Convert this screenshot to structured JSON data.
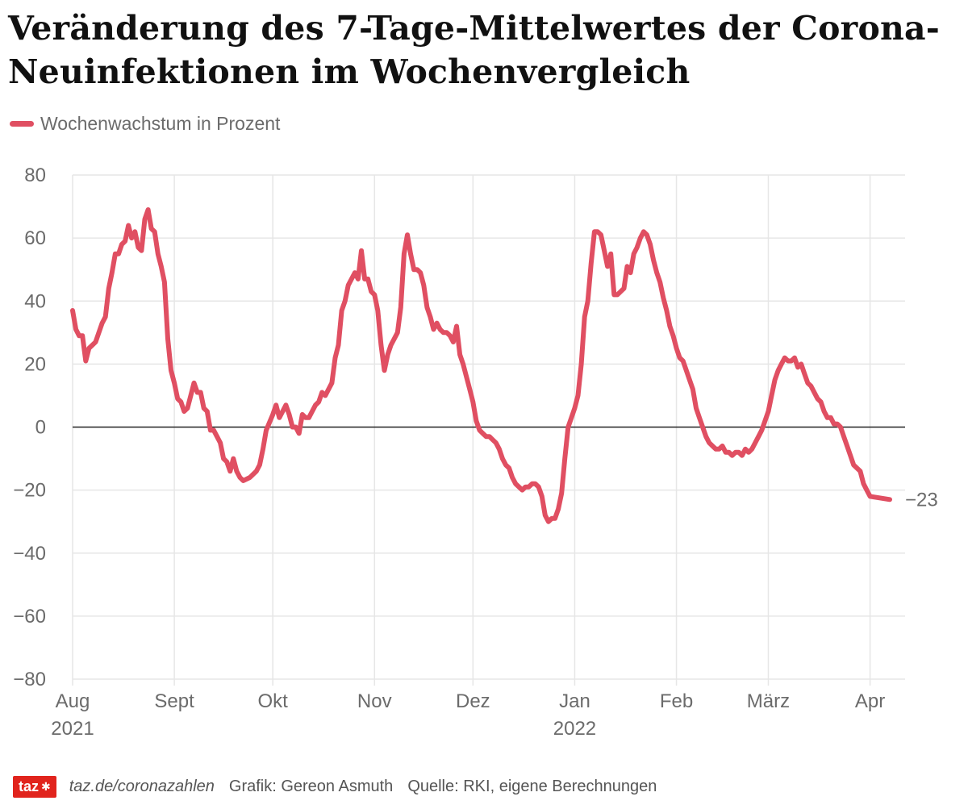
{
  "title": "Veränderung des 7-Tage-Mittelwertes der Corona-Neuinfektionen im Wochenvergleich",
  "legend": {
    "label": "Wochenwachstum in Prozent"
  },
  "colors": {
    "line": "#e04f62",
    "grid": "#e6e6e6",
    "zero": "#222222",
    "tick": "#6b6b6b",
    "logo": "#e1241d"
  },
  "footer": {
    "logo": "taz",
    "logo_icon": "paw-icon",
    "url": "taz.de/coronazahlen",
    "credit": "Grafik: Gereon Asmuth",
    "source": "Quelle: RKI, eigene Berechnungen"
  },
  "chart_data": {
    "type": "line",
    "ylim": [
      -80,
      80
    ],
    "y_ticks": [
      80,
      60,
      40,
      20,
      0,
      -20,
      -40,
      -60,
      -80
    ],
    "x_range": [
      "2021-08-01",
      "2022-04-07"
    ],
    "grid": true,
    "legend_position": "top-left",
    "end_label": "−23",
    "x_ticks": [
      {
        "date": "2021-08-01",
        "label": "Aug",
        "sublabel": "2021"
      },
      {
        "date": "2021-09-01",
        "label": "Sept",
        "sublabel": ""
      },
      {
        "date": "2021-10-01",
        "label": "Okt",
        "sublabel": ""
      },
      {
        "date": "2021-11-01",
        "label": "Nov",
        "sublabel": ""
      },
      {
        "date": "2021-12-01",
        "label": "Dez",
        "sublabel": ""
      },
      {
        "date": "2022-01-01",
        "label": "Jan",
        "sublabel": "2022"
      },
      {
        "date": "2022-02-01",
        "label": "Feb",
        "sublabel": ""
      },
      {
        "date": "2022-03-01",
        "label": "März",
        "sublabel": ""
      },
      {
        "date": "2022-04-01",
        "label": "Apr",
        "sublabel": ""
      }
    ],
    "series": [
      {
        "name": "Wochenwachstum in Prozent",
        "points": [
          [
            "2021-08-01",
            37
          ],
          [
            "2021-08-02",
            31
          ],
          [
            "2021-08-03",
            29
          ],
          [
            "2021-08-04",
            29
          ],
          [
            "2021-08-05",
            21
          ],
          [
            "2021-08-06",
            25
          ],
          [
            "2021-08-07",
            26
          ],
          [
            "2021-08-08",
            27
          ],
          [
            "2021-08-10",
            33
          ],
          [
            "2021-08-11",
            35
          ],
          [
            "2021-08-12",
            44
          ],
          [
            "2021-08-13",
            49
          ],
          [
            "2021-08-14",
            55
          ],
          [
            "2021-08-15",
            55
          ],
          [
            "2021-08-16",
            58
          ],
          [
            "2021-08-17",
            59
          ],
          [
            "2021-08-18",
            64
          ],
          [
            "2021-08-19",
            60
          ],
          [
            "2021-08-20",
            62
          ],
          [
            "2021-08-21",
            57
          ],
          [
            "2021-08-22",
            56
          ],
          [
            "2021-08-23",
            66
          ],
          [
            "2021-08-24",
            69
          ],
          [
            "2021-08-25",
            63
          ],
          [
            "2021-08-26",
            62
          ],
          [
            "2021-08-27",
            55
          ],
          [
            "2021-08-28",
            51
          ],
          [
            "2021-08-29",
            46
          ],
          [
            "2021-08-30",
            28
          ],
          [
            "2021-08-31",
            18
          ],
          [
            "2021-09-01",
            14
          ],
          [
            "2021-09-02",
            9
          ],
          [
            "2021-09-03",
            8
          ],
          [
            "2021-09-04",
            5
          ],
          [
            "2021-09-05",
            6
          ],
          [
            "2021-09-06",
            10
          ],
          [
            "2021-09-07",
            14
          ],
          [
            "2021-09-08",
            11
          ],
          [
            "2021-09-09",
            11
          ],
          [
            "2021-09-10",
            6
          ],
          [
            "2021-09-11",
            5
          ],
          [
            "2021-09-12",
            -1
          ],
          [
            "2021-09-13",
            -1
          ],
          [
            "2021-09-14",
            -3
          ],
          [
            "2021-09-15",
            -5
          ],
          [
            "2021-09-16",
            -10
          ],
          [
            "2021-09-17",
            -11
          ],
          [
            "2021-09-18",
            -14
          ],
          [
            "2021-09-19",
            -10
          ],
          [
            "2021-09-20",
            -14
          ],
          [
            "2021-09-21",
            -16
          ],
          [
            "2021-09-22",
            -17
          ],
          [
            "2021-09-24",
            -16
          ],
          [
            "2021-09-26",
            -14
          ],
          [
            "2021-09-27",
            -12
          ],
          [
            "2021-09-28",
            -7
          ],
          [
            "2021-09-29",
            -1
          ],
          [
            "2021-10-01",
            4
          ],
          [
            "2021-10-02",
            7
          ],
          [
            "2021-10-03",
            3
          ],
          [
            "2021-10-04",
            5
          ],
          [
            "2021-10-05",
            7
          ],
          [
            "2021-10-06",
            4
          ],
          [
            "2021-10-07",
            0
          ],
          [
            "2021-10-08",
            0
          ],
          [
            "2021-10-09",
            -2
          ],
          [
            "2021-10-10",
            4
          ],
          [
            "2021-10-11",
            3
          ],
          [
            "2021-10-12",
            3
          ],
          [
            "2021-10-13",
            5
          ],
          [
            "2021-10-14",
            7
          ],
          [
            "2021-10-15",
            8
          ],
          [
            "2021-10-16",
            11
          ],
          [
            "2021-10-17",
            10
          ],
          [
            "2021-10-18",
            12
          ],
          [
            "2021-10-19",
            14
          ],
          [
            "2021-10-20",
            22
          ],
          [
            "2021-10-21",
            26
          ],
          [
            "2021-10-22",
            37
          ],
          [
            "2021-10-23",
            40
          ],
          [
            "2021-10-24",
            45
          ],
          [
            "2021-10-25",
            47
          ],
          [
            "2021-10-26",
            49
          ],
          [
            "2021-10-27",
            47
          ],
          [
            "2021-10-28",
            56
          ],
          [
            "2021-10-29",
            47
          ],
          [
            "2021-10-30",
            47
          ],
          [
            "2021-10-31",
            43
          ],
          [
            "2021-11-01",
            42
          ],
          [
            "2021-11-02",
            37
          ],
          [
            "2021-11-03",
            26
          ],
          [
            "2021-11-04",
            18
          ],
          [
            "2021-11-05",
            23
          ],
          [
            "2021-11-06",
            26
          ],
          [
            "2021-11-07",
            28
          ],
          [
            "2021-11-08",
            30
          ],
          [
            "2021-11-09",
            38
          ],
          [
            "2021-11-10",
            55
          ],
          [
            "2021-11-11",
            61
          ],
          [
            "2021-11-12",
            55
          ],
          [
            "2021-11-13",
            50
          ],
          [
            "2021-11-14",
            50
          ],
          [
            "2021-11-15",
            49
          ],
          [
            "2021-11-16",
            45
          ],
          [
            "2021-11-17",
            38
          ],
          [
            "2021-11-18",
            35
          ],
          [
            "2021-11-19",
            31
          ],
          [
            "2021-11-20",
            33
          ],
          [
            "2021-11-21",
            31
          ],
          [
            "2021-11-22",
            30
          ],
          [
            "2021-11-23",
            30
          ],
          [
            "2021-11-24",
            29
          ],
          [
            "2021-11-25",
            27
          ],
          [
            "2021-11-26",
            32
          ],
          [
            "2021-11-27",
            23
          ],
          [
            "2021-11-28",
            20
          ],
          [
            "2021-11-29",
            16
          ],
          [
            "2021-11-30",
            12
          ],
          [
            "2021-12-01",
            8
          ],
          [
            "2021-12-02",
            2
          ],
          [
            "2021-12-03",
            -1
          ],
          [
            "2021-12-04",
            -2
          ],
          [
            "2021-12-05",
            -3
          ],
          [
            "2021-12-06",
            -3
          ],
          [
            "2021-12-07",
            -4
          ],
          [
            "2021-12-08",
            -5
          ],
          [
            "2021-12-09",
            -7
          ],
          [
            "2021-12-10",
            -10
          ],
          [
            "2021-12-11",
            -12
          ],
          [
            "2021-12-12",
            -13
          ],
          [
            "2021-12-13",
            -16
          ],
          [
            "2021-12-14",
            -18
          ],
          [
            "2021-12-15",
            -19
          ],
          [
            "2021-12-16",
            -20
          ],
          [
            "2021-12-17",
            -19
          ],
          [
            "2021-12-18",
            -19
          ],
          [
            "2021-12-19",
            -18
          ],
          [
            "2021-12-20",
            -18
          ],
          [
            "2021-12-21",
            -19
          ],
          [
            "2021-12-22",
            -22
          ],
          [
            "2021-12-23",
            -28
          ],
          [
            "2021-12-24",
            -30
          ],
          [
            "2021-12-25",
            -29
          ],
          [
            "2021-12-26",
            -29
          ],
          [
            "2021-12-27",
            -26
          ],
          [
            "2021-12-28",
            -21
          ],
          [
            "2021-12-29",
            -10
          ],
          [
            "2021-12-30",
            0
          ],
          [
            "2021-12-31",
            3
          ],
          [
            "2022-01-01",
            6
          ],
          [
            "2022-01-02",
            10
          ],
          [
            "2022-01-03",
            20
          ],
          [
            "2022-01-04",
            35
          ],
          [
            "2022-01-05",
            40
          ],
          [
            "2022-01-06",
            52
          ],
          [
            "2022-01-07",
            62
          ],
          [
            "2022-01-08",
            62
          ],
          [
            "2022-01-09",
            61
          ],
          [
            "2022-01-10",
            56
          ],
          [
            "2022-01-11",
            51
          ],
          [
            "2022-01-12",
            55
          ],
          [
            "2022-01-13",
            42
          ],
          [
            "2022-01-14",
            42
          ],
          [
            "2022-01-15",
            43
          ],
          [
            "2022-01-16",
            44
          ],
          [
            "2022-01-17",
            51
          ],
          [
            "2022-01-18",
            49
          ],
          [
            "2022-01-19",
            55
          ],
          [
            "2022-01-20",
            57
          ],
          [
            "2022-01-21",
            60
          ],
          [
            "2022-01-22",
            62
          ],
          [
            "2022-01-23",
            61
          ],
          [
            "2022-01-24",
            58
          ],
          [
            "2022-01-25",
            53
          ],
          [
            "2022-01-26",
            49
          ],
          [
            "2022-01-27",
            46
          ],
          [
            "2022-01-28",
            41
          ],
          [
            "2022-01-29",
            37
          ],
          [
            "2022-01-30",
            32
          ],
          [
            "2022-01-31",
            29
          ],
          [
            "2022-02-01",
            25
          ],
          [
            "2022-02-02",
            22
          ],
          [
            "2022-02-03",
            21
          ],
          [
            "2022-02-04",
            18
          ],
          [
            "2022-02-05",
            15
          ],
          [
            "2022-02-06",
            12
          ],
          [
            "2022-02-07",
            6
          ],
          [
            "2022-02-08",
            3
          ],
          [
            "2022-02-09",
            0
          ],
          [
            "2022-02-10",
            -3
          ],
          [
            "2022-02-11",
            -5
          ],
          [
            "2022-02-12",
            -6
          ],
          [
            "2022-02-13",
            -7
          ],
          [
            "2022-02-14",
            -7
          ],
          [
            "2022-02-15",
            -6
          ],
          [
            "2022-02-16",
            -8
          ],
          [
            "2022-02-17",
            -8
          ],
          [
            "2022-02-18",
            -9
          ],
          [
            "2022-02-19",
            -8
          ],
          [
            "2022-02-20",
            -8
          ],
          [
            "2022-02-21",
            -9
          ],
          [
            "2022-02-22",
            -7
          ],
          [
            "2022-02-23",
            -8
          ],
          [
            "2022-02-24",
            -7
          ],
          [
            "2022-02-25",
            -5
          ],
          [
            "2022-02-26",
            -3
          ],
          [
            "2022-02-27",
            -1
          ],
          [
            "2022-02-28",
            2
          ],
          [
            "2022-03-01",
            5
          ],
          [
            "2022-03-02",
            10
          ],
          [
            "2022-03-03",
            15
          ],
          [
            "2022-03-04",
            18
          ],
          [
            "2022-03-05",
            20
          ],
          [
            "2022-03-06",
            22
          ],
          [
            "2022-03-07",
            21
          ],
          [
            "2022-03-08",
            21
          ],
          [
            "2022-03-09",
            22
          ],
          [
            "2022-03-10",
            19
          ],
          [
            "2022-03-11",
            20
          ],
          [
            "2022-03-12",
            17
          ],
          [
            "2022-03-13",
            14
          ],
          [
            "2022-03-14",
            13
          ],
          [
            "2022-03-15",
            11
          ],
          [
            "2022-03-16",
            9
          ],
          [
            "2022-03-17",
            8
          ],
          [
            "2022-03-18",
            5
          ],
          [
            "2022-03-19",
            3
          ],
          [
            "2022-03-20",
            3
          ],
          [
            "2022-03-21",
            1
          ],
          [
            "2022-03-22",
            1
          ],
          [
            "2022-03-23",
            0
          ],
          [
            "2022-03-24",
            -3
          ],
          [
            "2022-03-25",
            -6
          ],
          [
            "2022-03-26",
            -9
          ],
          [
            "2022-03-27",
            -12
          ],
          [
            "2022-03-28",
            -13
          ],
          [
            "2022-03-29",
            -14
          ],
          [
            "2022-03-30",
            -18
          ],
          [
            "2022-03-31",
            -20
          ],
          [
            "2022-04-01",
            -22
          ],
          [
            "2022-04-07",
            -23
          ]
        ]
      }
    ]
  }
}
